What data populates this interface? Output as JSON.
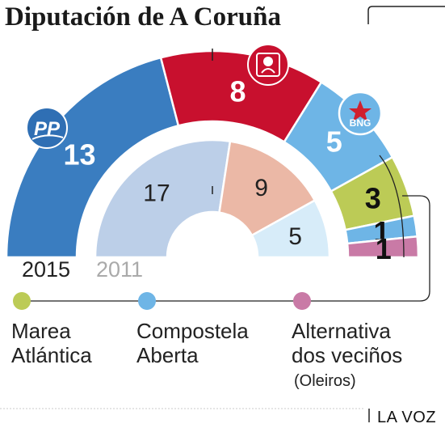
{
  "chart_data": [
    {
      "type": "pie",
      "title": "Diputación de A Coruña",
      "year": "2015",
      "values": [
        13,
        8,
        5,
        3,
        1,
        1
      ],
      "seat_labels": [
        "13",
        "8",
        "5",
        "3",
        "1",
        "1"
      ],
      "colors": [
        "#3a7dc0",
        "#c8102e",
        "#6eb5e6",
        "#bccb56",
        "#6eb5e6",
        "#c97aa6"
      ],
      "party_logos": [
        "pp-logo",
        "psoe-logo",
        "bng-logo",
        null,
        null,
        null
      ]
    },
    {
      "type": "pie",
      "year": "2011",
      "values": [
        17,
        9,
        5
      ],
      "seat_labels": [
        "17",
        "9",
        "5"
      ],
      "colors": [
        "#bccfe8",
        "#ebb8a6",
        "#d7ecf9"
      ]
    }
  ],
  "logos": {
    "pp": "PP",
    "bng": "BNG"
  },
  "legend": [
    {
      "lines": [
        "Marea",
        "Atlántica"
      ],
      "sub": "",
      "color": "#bccb56"
    },
    {
      "lines": [
        "Compostela",
        "Aberta"
      ],
      "sub": "",
      "color": "#6eb5e6"
    },
    {
      "lines": [
        "Alternativa",
        "dos veciños"
      ],
      "sub": "(Oleiros)",
      "color": "#c97aa6"
    }
  ],
  "credit": "LA VOZ"
}
